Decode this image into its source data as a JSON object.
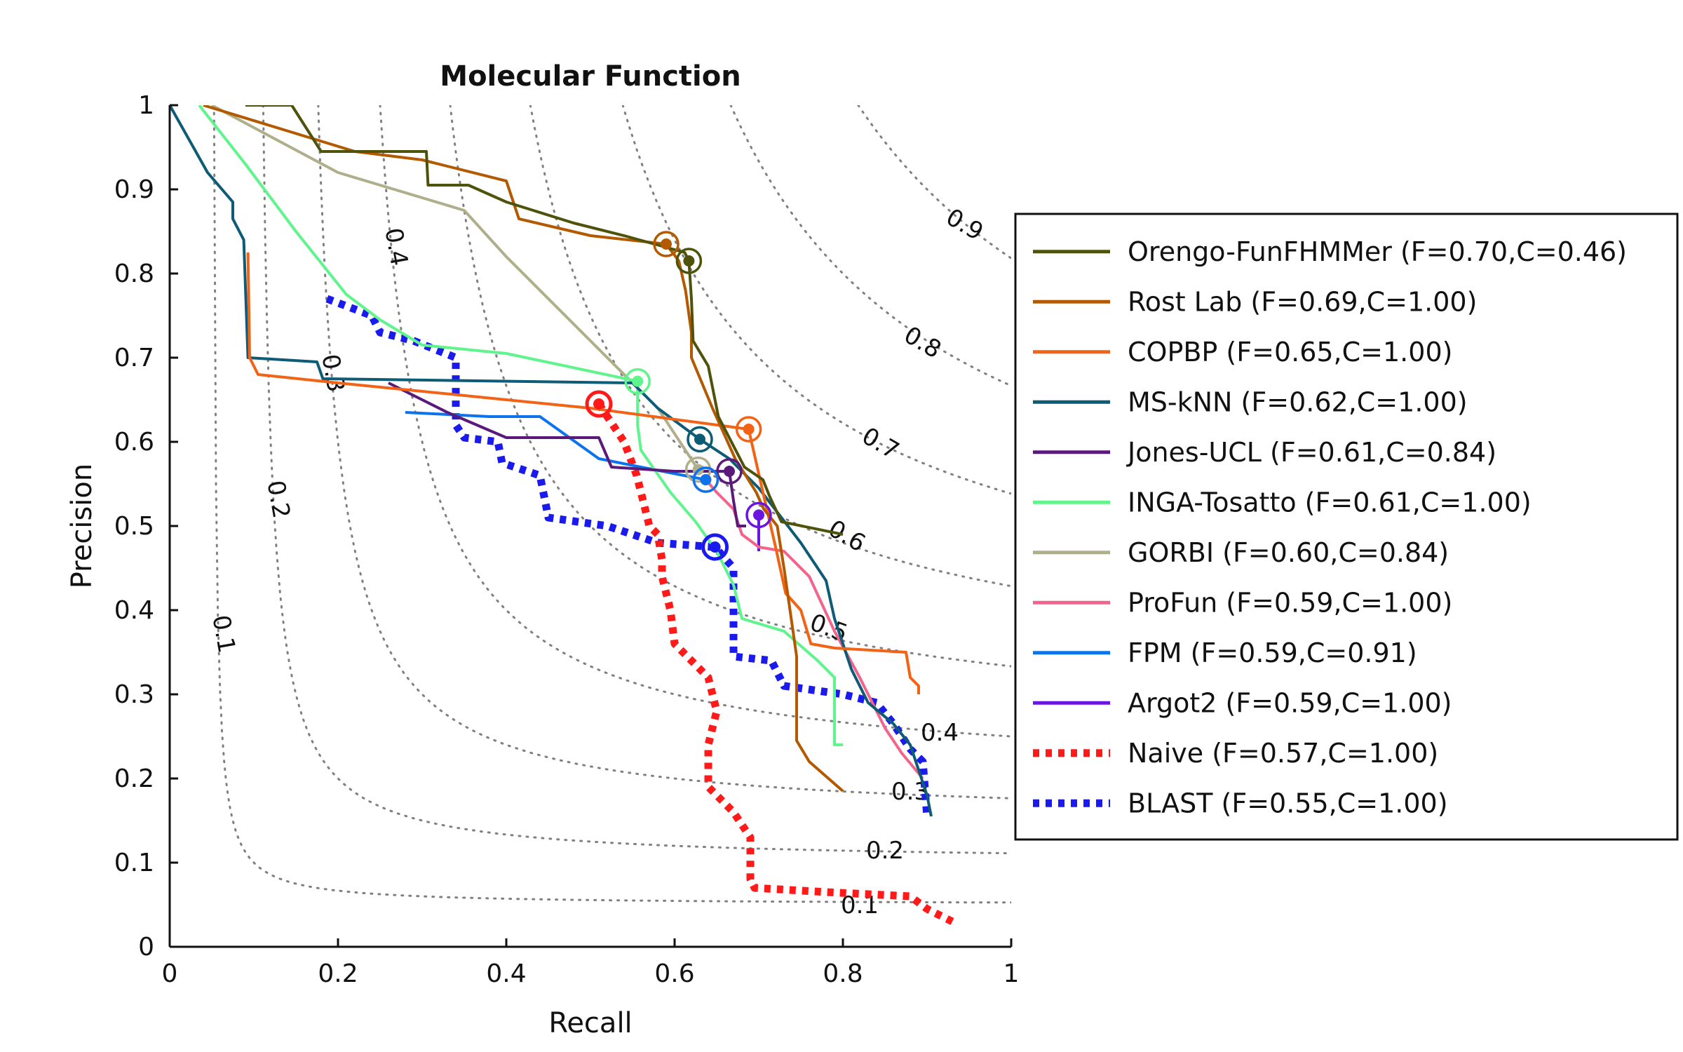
{
  "chart_data": {
    "type": "line",
    "title": "Molecular Function",
    "xlabel": "Recall",
    "ylabel": "Precision",
    "xlim": [
      0,
      1
    ],
    "ylim": [
      0,
      1
    ],
    "xticks": [
      "0",
      "0.2",
      "0.4",
      "0.6",
      "0.8",
      "1"
    ],
    "yticks": [
      "0",
      "0.1",
      "0.2",
      "0.3",
      "0.4",
      "0.5",
      "0.6",
      "0.7",
      "0.8",
      "0.9",
      "1"
    ],
    "grid": false,
    "legend_position": "right",
    "iso_f_curves": {
      "style": "dotted",
      "color": "#808080",
      "levels": [
        0.1,
        0.2,
        0.3,
        0.4,
        0.5,
        0.6,
        0.7,
        0.8,
        0.9
      ],
      "labels": [
        "0.1",
        "0.2",
        "0.3",
        "0.4",
        "0.5",
        "0.6",
        "0.7",
        "0.8",
        "0.9"
      ]
    },
    "series": [
      {
        "name": "Orengo-FunFHMMer (F=0.70,C=0.46)",
        "color": "#4f520b",
        "style": "solid",
        "marker": [
          0.617,
          0.815
        ],
        "points": [
          [
            0.09,
            1.0
          ],
          [
            0.145,
            1.0
          ],
          [
            0.18,
            0.945
          ],
          [
            0.305,
            0.945
          ],
          [
            0.307,
            0.905
          ],
          [
            0.355,
            0.905
          ],
          [
            0.4,
            0.885
          ],
          [
            0.48,
            0.86
          ],
          [
            0.54,
            0.845
          ],
          [
            0.612,
            0.825
          ],
          [
            0.617,
            0.815
          ],
          [
            0.62,
            0.77
          ],
          [
            0.622,
            0.72
          ],
          [
            0.64,
            0.69
          ],
          [
            0.652,
            0.63
          ],
          [
            0.683,
            0.57
          ],
          [
            0.705,
            0.555
          ],
          [
            0.713,
            0.535
          ],
          [
            0.727,
            0.505
          ],
          [
            0.8,
            0.49
          ]
        ]
      },
      {
        "name": "Rost Lab (F=0.69,C=1.00)",
        "color": "#b35900",
        "style": "solid",
        "marker": [
          0.59,
          0.835
        ],
        "points": [
          [
            0.04,
            1.0
          ],
          [
            0.22,
            0.945
          ],
          [
            0.3,
            0.935
          ],
          [
            0.4,
            0.91
          ],
          [
            0.415,
            0.865
          ],
          [
            0.5,
            0.845
          ],
          [
            0.59,
            0.835
          ],
          [
            0.605,
            0.815
          ],
          [
            0.613,
            0.78
          ],
          [
            0.62,
            0.73
          ],
          [
            0.62,
            0.7
          ],
          [
            0.645,
            0.64
          ],
          [
            0.672,
            0.58
          ],
          [
            0.697,
            0.54
          ],
          [
            0.706,
            0.52
          ],
          [
            0.722,
            0.5
          ],
          [
            0.73,
            0.45
          ],
          [
            0.745,
            0.345
          ],
          [
            0.745,
            0.245
          ],
          [
            0.76,
            0.22
          ],
          [
            0.8,
            0.185
          ]
        ]
      },
      {
        "name": "COPBP (F=0.65,C=1.00)",
        "color": "#f26316",
        "style": "solid",
        "marker": [
          0.688,
          0.615
        ],
        "points": [
          [
            0.093,
            0.825
          ],
          [
            0.095,
            0.7
          ],
          [
            0.105,
            0.68
          ],
          [
            0.2,
            0.67
          ],
          [
            0.5,
            0.64
          ],
          [
            0.688,
            0.615
          ],
          [
            0.705,
            0.54
          ],
          [
            0.72,
            0.475
          ],
          [
            0.732,
            0.42
          ],
          [
            0.75,
            0.4
          ],
          [
            0.762,
            0.36
          ],
          [
            0.79,
            0.355
          ],
          [
            0.875,
            0.35
          ],
          [
            0.88,
            0.32
          ],
          [
            0.89,
            0.31
          ],
          [
            0.89,
            0.3
          ]
        ]
      },
      {
        "name": "MS-kNN (F=0.62,C=1.00)",
        "color": "#0e5b76",
        "style": "solid",
        "marker": [
          0.63,
          0.603
        ],
        "points": [
          [
            0.0,
            1.0
          ],
          [
            0.045,
            0.92
          ],
          [
            0.075,
            0.885
          ],
          [
            0.075,
            0.865
          ],
          [
            0.088,
            0.84
          ],
          [
            0.093,
            0.7
          ],
          [
            0.175,
            0.695
          ],
          [
            0.182,
            0.675
          ],
          [
            0.55,
            0.67
          ],
          [
            0.58,
            0.64
          ],
          [
            0.63,
            0.603
          ],
          [
            0.665,
            0.58
          ],
          [
            0.7,
            0.545
          ],
          [
            0.75,
            0.48
          ],
          [
            0.78,
            0.435
          ],
          [
            0.79,
            0.39
          ],
          [
            0.81,
            0.33
          ],
          [
            0.83,
            0.29
          ],
          [
            0.86,
            0.265
          ],
          [
            0.88,
            0.24
          ],
          [
            0.9,
            0.18
          ],
          [
            0.905,
            0.155
          ]
        ]
      },
      {
        "name": "Jones-UCL (F=0.61,C=0.84)",
        "color": "#5a1a7a",
        "style": "solid",
        "marker": [
          0.665,
          0.565
        ],
        "points": [
          [
            0.26,
            0.67
          ],
          [
            0.33,
            0.635
          ],
          [
            0.4,
            0.605
          ],
          [
            0.51,
            0.605
          ],
          [
            0.525,
            0.57
          ],
          [
            0.6,
            0.565
          ],
          [
            0.665,
            0.565
          ],
          [
            0.67,
            0.53
          ],
          [
            0.675,
            0.5
          ],
          [
            0.685,
            0.5
          ]
        ]
      },
      {
        "name": "INGA-Tosatto (F=0.61,C=1.00)",
        "color": "#5ff58c",
        "style": "solid",
        "marker": [
          0.556,
          0.672
        ],
        "points": [
          [
            0.035,
            1.0
          ],
          [
            0.09,
            0.93
          ],
          [
            0.15,
            0.85
          ],
          [
            0.21,
            0.775
          ],
          [
            0.25,
            0.745
          ],
          [
            0.3,
            0.715
          ],
          [
            0.4,
            0.705
          ],
          [
            0.556,
            0.672
          ],
          [
            0.556,
            0.62
          ],
          [
            0.56,
            0.59
          ],
          [
            0.595,
            0.54
          ],
          [
            0.625,
            0.505
          ],
          [
            0.65,
            0.47
          ],
          [
            0.67,
            0.43
          ],
          [
            0.68,
            0.39
          ],
          [
            0.73,
            0.375
          ],
          [
            0.77,
            0.34
          ],
          [
            0.79,
            0.32
          ],
          [
            0.79,
            0.24
          ],
          [
            0.8,
            0.24
          ]
        ]
      },
      {
        "name": "GORBI (F=0.60,C=0.84)",
        "color": "#b0af8c",
        "style": "solid",
        "marker": [
          0.628,
          0.567
        ],
        "points": [
          [
            0.05,
            1.0
          ],
          [
            0.2,
            0.92
          ],
          [
            0.35,
            0.875
          ],
          [
            0.4,
            0.82
          ],
          [
            0.5,
            0.72
          ],
          [
            0.58,
            0.64
          ],
          [
            0.628,
            0.567
          ]
        ]
      },
      {
        "name": "ProFun (F=0.59,C=1.00)",
        "color": "#f2648c",
        "style": "solid",
        "marker": [
          0.637,
          0.555
        ],
        "points": [
          [
            0.637,
            0.555
          ],
          [
            0.65,
            0.54
          ],
          [
            0.67,
            0.52
          ],
          [
            0.68,
            0.49
          ],
          [
            0.7,
            0.475
          ],
          [
            0.73,
            0.47
          ],
          [
            0.76,
            0.44
          ],
          [
            0.79,
            0.375
          ],
          [
            0.82,
            0.32
          ],
          [
            0.85,
            0.26
          ],
          [
            0.87,
            0.23
          ],
          [
            0.895,
            0.2
          ]
        ]
      },
      {
        "name": "FPM (F=0.59,C=0.91)",
        "color": "#0d73ed",
        "style": "solid",
        "marker": [
          0.637,
          0.555
        ],
        "points": [
          [
            0.28,
            0.635
          ],
          [
            0.38,
            0.63
          ],
          [
            0.44,
            0.63
          ],
          [
            0.51,
            0.58
          ],
          [
            0.56,
            0.57
          ],
          [
            0.637,
            0.555
          ]
        ]
      },
      {
        "name": "Argot2 (F=0.59,C=1.00)",
        "color": "#6a16e0",
        "style": "solid",
        "marker": [
          0.7,
          0.513
        ],
        "points": [
          [
            0.7,
            0.513
          ],
          [
            0.7,
            0.47
          ]
        ]
      },
      {
        "name": "Naive (F=0.57,C=1.00)",
        "color": "#ff1a1a",
        "style": "dotted",
        "marker": [
          0.51,
          0.645
        ],
        "points": [
          [
            0.51,
            0.645
          ],
          [
            0.54,
            0.6
          ],
          [
            0.555,
            0.56
          ],
          [
            0.57,
            0.5
          ],
          [
            0.58,
            0.49
          ],
          [
            0.585,
            0.46
          ],
          [
            0.585,
            0.44
          ],
          [
            0.595,
            0.4
          ],
          [
            0.6,
            0.36
          ],
          [
            0.62,
            0.34
          ],
          [
            0.64,
            0.32
          ],
          [
            0.65,
            0.28
          ],
          [
            0.64,
            0.24
          ],
          [
            0.64,
            0.19
          ],
          [
            0.67,
            0.16
          ],
          [
            0.69,
            0.13
          ],
          [
            0.69,
            0.08
          ],
          [
            0.695,
            0.07
          ],
          [
            0.78,
            0.065
          ],
          [
            0.88,
            0.06
          ],
          [
            0.9,
            0.045
          ],
          [
            0.93,
            0.03
          ]
        ]
      },
      {
        "name": "BLAST (F=0.55,C=1.00)",
        "color": "#1a1aee",
        "style": "dotted",
        "marker": [
          0.648,
          0.475
        ],
        "points": [
          [
            0.187,
            0.77
          ],
          [
            0.24,
            0.75
          ],
          [
            0.25,
            0.73
          ],
          [
            0.29,
            0.72
          ],
          [
            0.34,
            0.7
          ],
          [
            0.34,
            0.62
          ],
          [
            0.35,
            0.605
          ],
          [
            0.39,
            0.6
          ],
          [
            0.395,
            0.575
          ],
          [
            0.44,
            0.56
          ],
          [
            0.445,
            0.535
          ],
          [
            0.45,
            0.51
          ],
          [
            0.52,
            0.5
          ],
          [
            0.58,
            0.48
          ],
          [
            0.648,
            0.475
          ],
          [
            0.67,
            0.45
          ],
          [
            0.67,
            0.345
          ],
          [
            0.715,
            0.34
          ],
          [
            0.73,
            0.31
          ],
          [
            0.8,
            0.3
          ],
          [
            0.84,
            0.29
          ],
          [
            0.86,
            0.265
          ],
          [
            0.88,
            0.235
          ],
          [
            0.895,
            0.22
          ],
          [
            0.9,
            0.155
          ]
        ]
      }
    ]
  }
}
